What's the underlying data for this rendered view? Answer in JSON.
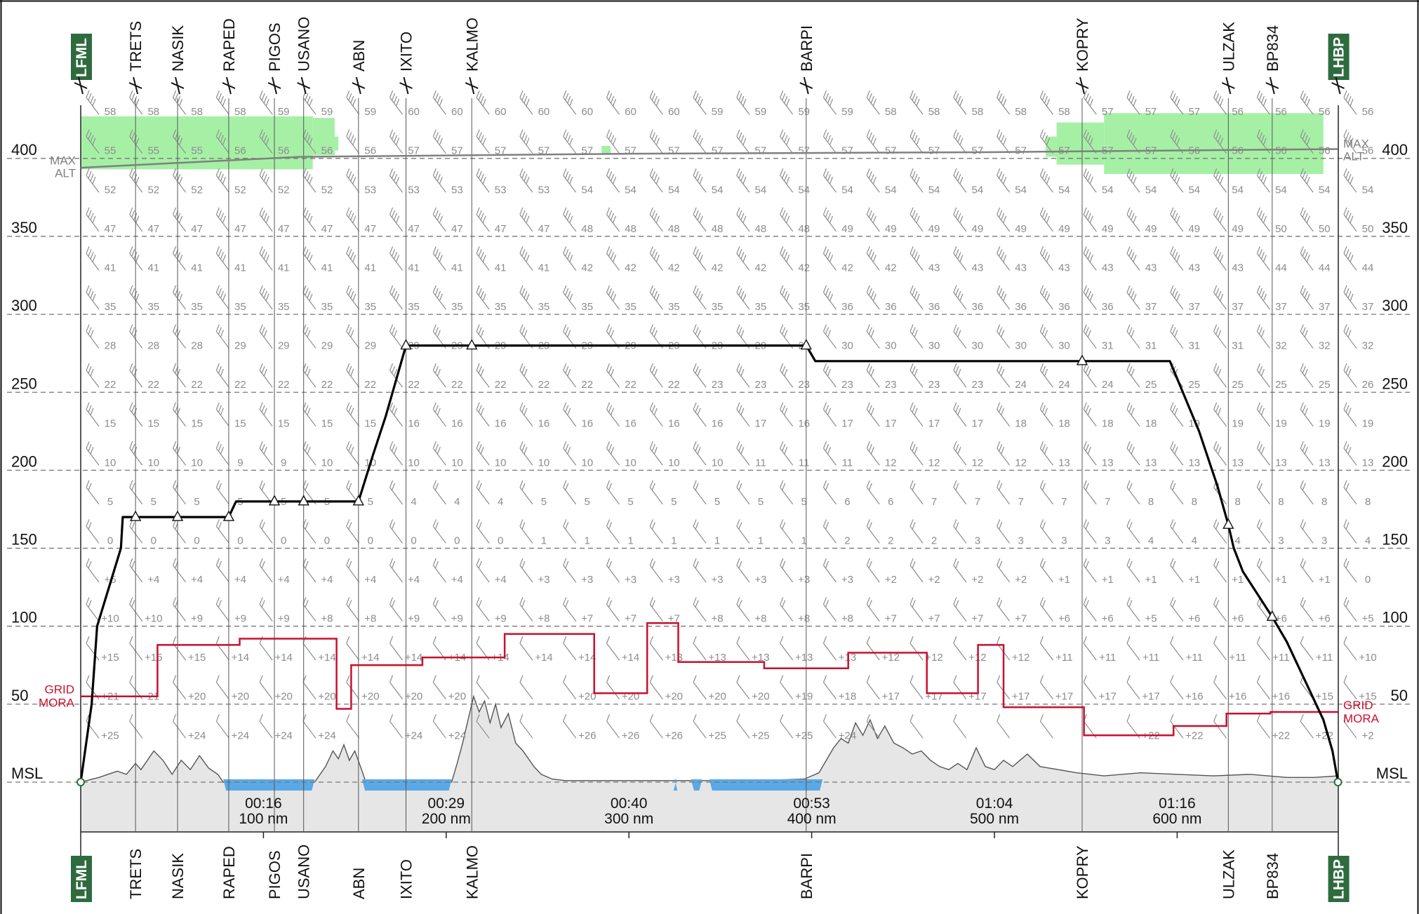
{
  "colors": {
    "profile": "#000000",
    "mora": "#c8102e",
    "maxalt": "#808080",
    "terrain_fill": "#e6e6e6",
    "water": "#5aa8e6",
    "cloud": "#a6f0a6",
    "airport_bg": "#2e6b3f",
    "grid": "#777777",
    "wind": "#8c8c8c"
  },
  "chart_data": {
    "type": "line",
    "y_axis": {
      "unit": "flight level",
      "range": [
        0,
        400
      ],
      "labels": [
        {
          "value": 0,
          "text": "MSL"
        },
        {
          "value": 50,
          "text": "50"
        },
        {
          "value": 100,
          "text": "100"
        },
        {
          "value": 150,
          "text": "150"
        },
        {
          "value": 200,
          "text": "200"
        },
        {
          "value": 250,
          "text": "250"
        },
        {
          "value": 300,
          "text": "300"
        },
        {
          "value": 350,
          "text": "350"
        },
        {
          "value": 400,
          "text": "400"
        }
      ]
    },
    "x_axis": {
      "unit": "nm",
      "range": [
        0,
        688
      ],
      "ticks": [
        {
          "nm": 100,
          "time": "00:16",
          "dist": "100 nm"
        },
        {
          "nm": 200,
          "time": "00:29",
          "dist": "200 nm"
        },
        {
          "nm": 300,
          "time": "00:40",
          "dist": "300 nm"
        },
        {
          "nm": 400,
          "time": "00:53",
          "dist": "400 nm"
        },
        {
          "nm": 500,
          "time": "01:04",
          "dist": "500 nm"
        },
        {
          "nm": 600,
          "time": "01:16",
          "dist": "600 nm"
        }
      ]
    },
    "waypoints": [
      {
        "name": "LFML",
        "nm": 0,
        "airport": true
      },
      {
        "name": "TRETS",
        "nm": 30
      },
      {
        "name": "NASIK",
        "nm": 53
      },
      {
        "name": "RAPED",
        "nm": 81
      },
      {
        "name": "PIGOS",
        "nm": 106
      },
      {
        "name": "USANO",
        "nm": 122
      },
      {
        "name": "ABN",
        "nm": 152
      },
      {
        "name": "IXITO",
        "nm": 178
      },
      {
        "name": "KALMO",
        "nm": 214
      },
      {
        "name": "BARPI",
        "nm": 397
      },
      {
        "name": "KOPRY",
        "nm": 548
      },
      {
        "name": "ULZAK",
        "nm": 628
      },
      {
        "name": "BP834",
        "nm": 652
      },
      {
        "name": "LHBP",
        "nm": 688,
        "airport": true
      }
    ],
    "profile": [
      [
        0,
        0
      ],
      [
        6,
        50
      ],
      [
        9,
        100
      ],
      [
        22,
        150
      ],
      [
        23,
        170
      ],
      [
        81,
        170
      ],
      [
        85,
        180
      ],
      [
        152,
        180
      ],
      [
        160,
        210
      ],
      [
        167,
        235
      ],
      [
        178,
        280
      ],
      [
        397,
        280
      ],
      [
        402,
        270
      ],
      [
        596,
        270
      ],
      [
        612,
        225
      ],
      [
        622,
        190
      ],
      [
        628,
        165
      ],
      [
        631,
        150
      ],
      [
        636,
        135
      ],
      [
        652,
        106
      ],
      [
        660,
        90
      ],
      [
        672,
        60
      ],
      [
        680,
        40
      ],
      [
        685,
        20
      ],
      [
        688,
        0
      ]
    ],
    "profile_markers": [
      [
        30,
        170
      ],
      [
        53,
        170
      ],
      [
        81,
        170
      ],
      [
        106,
        180
      ],
      [
        122,
        180
      ],
      [
        152,
        180
      ],
      [
        178,
        280
      ],
      [
        214,
        280
      ],
      [
        397,
        280
      ],
      [
        548,
        270
      ],
      [
        628,
        165
      ],
      [
        652,
        106
      ]
    ],
    "grid_mora": [
      [
        0,
        55
      ],
      [
        42,
        55
      ],
      [
        42,
        88
      ],
      [
        87,
        88
      ],
      [
        87,
        92
      ],
      [
        140,
        92
      ],
      [
        140,
        47
      ],
      [
        148,
        47
      ],
      [
        148,
        75
      ],
      [
        187,
        75
      ],
      [
        187,
        80
      ],
      [
        232,
        80
      ],
      [
        232,
        95
      ],
      [
        281,
        95
      ],
      [
        281,
        57
      ],
      [
        310,
        57
      ],
      [
        310,
        102
      ],
      [
        327,
        102
      ],
      [
        327,
        77
      ],
      [
        374,
        77
      ],
      [
        374,
        73
      ],
      [
        420,
        73
      ],
      [
        420,
        83
      ],
      [
        463,
        83
      ],
      [
        463,
        57
      ],
      [
        491,
        57
      ],
      [
        491,
        88
      ],
      [
        505,
        88
      ],
      [
        505,
        48
      ],
      [
        549,
        48
      ],
      [
        549,
        30
      ],
      [
        598,
        30
      ],
      [
        598,
        36
      ],
      [
        627,
        36
      ],
      [
        627,
        44
      ],
      [
        651,
        44
      ],
      [
        651,
        45
      ],
      [
        688,
        45
      ]
    ],
    "max_alt": [
      [
        0,
        394
      ],
      [
        120,
        401
      ],
      [
        300,
        403
      ],
      [
        500,
        404
      ],
      [
        688,
        406
      ]
    ],
    "terrain": [
      [
        0,
        0
      ],
      [
        10,
        3
      ],
      [
        20,
        7
      ],
      [
        25,
        5
      ],
      [
        30,
        12
      ],
      [
        33,
        8
      ],
      [
        40,
        20
      ],
      [
        45,
        14
      ],
      [
        50,
        5
      ],
      [
        55,
        14
      ],
      [
        60,
        8
      ],
      [
        65,
        17
      ],
      [
        70,
        9
      ],
      [
        75,
        5
      ],
      [
        78,
        0
      ],
      [
        128,
        0
      ],
      [
        134,
        10
      ],
      [
        138,
        20
      ],
      [
        141,
        15
      ],
      [
        144,
        24
      ],
      [
        147,
        14
      ],
      [
        150,
        20
      ],
      [
        154,
        7
      ],
      [
        156,
        0
      ],
      [
        203,
        0
      ],
      [
        206,
        12
      ],
      [
        209,
        25
      ],
      [
        212,
        40
      ],
      [
        215,
        55
      ],
      [
        218,
        45
      ],
      [
        221,
        52
      ],
      [
        224,
        38
      ],
      [
        227,
        50
      ],
      [
        230,
        35
      ],
      [
        234,
        44
      ],
      [
        238,
        25
      ],
      [
        242,
        20
      ],
      [
        248,
        10
      ],
      [
        252,
        5
      ],
      [
        258,
        2
      ],
      [
        265,
        1
      ],
      [
        300,
        1
      ],
      [
        320,
        1
      ],
      [
        340,
        1
      ],
      [
        370,
        1
      ],
      [
        396,
        2
      ],
      [
        404,
        6
      ],
      [
        408,
        14
      ],
      [
        412,
        22
      ],
      [
        416,
        28
      ],
      [
        420,
        25
      ],
      [
        424,
        38
      ],
      [
        428,
        30
      ],
      [
        432,
        40
      ],
      [
        436,
        28
      ],
      [
        440,
        36
      ],
      [
        445,
        25
      ],
      [
        450,
        22
      ],
      [
        455,
        18
      ],
      [
        460,
        20
      ],
      [
        465,
        14
      ],
      [
        470,
        10
      ],
      [
        475,
        8
      ],
      [
        480,
        12
      ],
      [
        485,
        8
      ],
      [
        490,
        22
      ],
      [
        495,
        10
      ],
      [
        500,
        8
      ],
      [
        505,
        14
      ],
      [
        510,
        10
      ],
      [
        518,
        18
      ],
      [
        525,
        10
      ],
      [
        535,
        8
      ],
      [
        545,
        6
      ],
      [
        560,
        4
      ],
      [
        580,
        6
      ],
      [
        600,
        5
      ],
      [
        620,
        4
      ],
      [
        640,
        5
      ],
      [
        660,
        3
      ],
      [
        675,
        3
      ],
      [
        688,
        4
      ]
    ],
    "water": [
      [
        78,
        128
      ],
      [
        154,
        203
      ],
      [
        325,
        326
      ],
      [
        334,
        340
      ],
      [
        344,
        406
      ]
    ],
    "clouds": [
      {
        "nm": [
          0,
          127
        ],
        "fl": [
          393,
          427
        ]
      },
      {
        "nm": [
          127,
          139
        ],
        "fl": [
          402,
          426
        ]
      },
      {
        "nm": [
          139,
          141
        ],
        "fl": [
          405,
          414
        ]
      },
      {
        "nm": [
          285,
          290
        ],
        "fl": [
          403,
          408
        ]
      },
      {
        "nm": [
          528,
          534
        ],
        "fl": [
          401,
          414
        ]
      },
      {
        "nm": [
          534,
          560
        ],
        "fl": [
          396,
          423
        ]
      },
      {
        "nm": [
          560,
          680
        ],
        "fl": [
          390,
          429
        ]
      }
    ],
    "temperatures": [
      {
        "fl": 430,
        "vals": [
          "58",
          "58",
          "58",
          "58",
          "59",
          "59",
          "59",
          "60",
          "60",
          "60",
          "60",
          "60",
          "60",
          "60",
          "59",
          "59",
          "59",
          "59",
          "58",
          "58",
          "58",
          "58",
          "58",
          "57",
          "57",
          "57",
          "56",
          "56",
          "56",
          "56"
        ]
      },
      {
        "fl": 405,
        "vals": [
          "55",
          "55",
          "55",
          "56",
          "56",
          "56",
          "56",
          "57",
          "57",
          "57",
          "57",
          "57",
          "57",
          "57",
          "57",
          "57",
          "57",
          "57",
          "57",
          "57",
          "57",
          "57",
          "57",
          "57",
          "57",
          "56",
          "56",
          "56",
          "56",
          "56"
        ]
      },
      {
        "fl": 380,
        "vals": [
          "52",
          "52",
          "52",
          "52",
          "52",
          "52",
          "53",
          "53",
          "53",
          "53",
          "53",
          "54",
          "54",
          "54",
          "54",
          "54",
          "54",
          "54",
          "54",
          "54",
          "54",
          "54",
          "54",
          "54",
          "54",
          "54",
          "54",
          "54",
          "54",
          "54"
        ]
      },
      {
        "fl": 355,
        "vals": [
          "47",
          "47",
          "47",
          "47",
          "47",
          "47",
          "47",
          "47",
          "47",
          "47",
          "47",
          "48",
          "48",
          "48",
          "48",
          "48",
          "48",
          "49",
          "49",
          "49",
          "49",
          "49",
          "49",
          "49",
          "49",
          "49",
          "49",
          "50",
          "50",
          "50"
        ]
      },
      {
        "fl": 330,
        "vals": [
          "41",
          "41",
          "41",
          "41",
          "41",
          "41",
          "41",
          "41",
          "41",
          "41",
          "41",
          "42",
          "42",
          "42",
          "42",
          "42",
          "42",
          "42",
          "42",
          "43",
          "43",
          "43",
          "43",
          "43",
          "43",
          "43",
          "43",
          "44",
          "44",
          "44"
        ]
      },
      {
        "fl": 305,
        "vals": [
          "35",
          "35",
          "35",
          "35",
          "35",
          "35",
          "35",
          "35",
          "35",
          "35",
          "35",
          "35",
          "35",
          "35",
          "35",
          "35",
          "35",
          "36",
          "36",
          "36",
          "36",
          "36",
          "36",
          "36",
          "37",
          "37",
          "37",
          "37",
          "37",
          "37"
        ]
      },
      {
        "fl": 280,
        "vals": [
          "28",
          "28",
          "28",
          "29",
          "29",
          "29",
          "29",
          "29",
          "29",
          "29",
          "29",
          "29",
          "29",
          "29",
          "29",
          "29",
          "29",
          "30",
          "30",
          "30",
          "30",
          "30",
          "30",
          "31",
          "31",
          "31",
          "31",
          "32",
          "32",
          "32"
        ]
      },
      {
        "fl": 255,
        "vals": [
          "22",
          "22",
          "22",
          "22",
          "22",
          "22",
          "22",
          "22",
          "22",
          "22",
          "22",
          "22",
          "22",
          "22",
          "23",
          "23",
          "23",
          "23",
          "23",
          "23",
          "23",
          "24",
          "24",
          "24",
          "25",
          "25",
          "25",
          "25",
          "25",
          "26"
        ]
      },
      {
        "fl": 230,
        "vals": [
          "15",
          "15",
          "15",
          "15",
          "15",
          "15",
          "15",
          "16",
          "16",
          "16",
          "16",
          "16",
          "16",
          "16",
          "16",
          "17",
          "16",
          "17",
          "17",
          "17",
          "17",
          "18",
          "18",
          "18",
          "18",
          "19",
          "19",
          "19",
          "19",
          "19"
        ]
      },
      {
        "fl": 205,
        "vals": [
          "10",
          "10",
          "10",
          "9",
          "9",
          "10",
          "10",
          "10",
          "10",
          "10",
          "10",
          "10",
          "10",
          "10",
          "10",
          "11",
          "11",
          "11",
          "12",
          "12",
          "12",
          "12",
          "13",
          "13",
          "13",
          "13",
          "13",
          "13",
          "13",
          "13"
        ]
      },
      {
        "fl": 180,
        "vals": [
          "5",
          "5",
          "5",
          "5",
          "5",
          "5",
          "5",
          "4",
          "4",
          "4",
          "5",
          "5",
          "5",
          "5",
          "5",
          "5",
          "5",
          "6",
          "6",
          "7",
          "7",
          "7",
          "7",
          "7",
          "8",
          "8",
          "8",
          "8",
          "8",
          "8"
        ]
      },
      {
        "fl": 155,
        "vals": [
          "0",
          "0",
          "0",
          "0",
          "0",
          "0",
          "0",
          "0",
          "0",
          "0",
          "1",
          "1",
          "1",
          "1",
          "1",
          "1",
          "1",
          "2",
          "2",
          "2",
          "3",
          "3",
          "3",
          "3",
          "4",
          "4",
          "4",
          "3",
          "3",
          "4"
        ]
      },
      {
        "fl": 130,
        "vals": [
          "+5",
          "+4",
          "+4",
          "+4",
          "+4",
          "+4",
          "+4",
          "+4",
          "+4",
          "+4",
          "+3",
          "+3",
          "+3",
          "+3",
          "+3",
          "+3",
          "+3",
          "+3",
          "+2",
          "+2",
          "+2",
          "+2",
          "+1",
          "+1",
          "+1",
          "+1",
          "+1",
          "+1",
          "+1",
          "0"
        ]
      },
      {
        "fl": 105,
        "vals": [
          "+10",
          "+10",
          "+9",
          "+9",
          "+9",
          "+8",
          "+8",
          "+9",
          "+9",
          "+9",
          "+8",
          "+7",
          "+7",
          "+7",
          "+8",
          "+8",
          "+8",
          "+8",
          "+7",
          "+7",
          "+7",
          "+7",
          "+6",
          "+6",
          "+5",
          "+6",
          "+6",
          "+6",
          "+6",
          "+5"
        ]
      },
      {
        "fl": 80,
        "vals": [
          "+15",
          "+15",
          "+15",
          "+14",
          "+14",
          "+14",
          "+14",
          "+14",
          "+14",
          "+14",
          "+14",
          "+14",
          "+14",
          "+13",
          "+13",
          "+13",
          "+13",
          "+13",
          "+12",
          "+12",
          "+12",
          "+12",
          "+11",
          "+11",
          "+11",
          "+11",
          "+11",
          "+11",
          "+11",
          "+10"
        ]
      },
      {
        "fl": 55,
        "vals": [
          "+21",
          "21",
          "+20",
          "+20",
          "+20",
          "+20",
          "+20",
          "+20",
          "+20",
          "",
          "",
          "+20",
          "+20",
          "+20",
          "+20",
          "+20",
          "+19",
          "+18",
          "+17",
          "+17",
          "+17",
          "+17",
          "+17",
          "+17",
          "+17",
          "+16",
          "+16",
          "+16",
          "+15",
          "+15"
        ]
      },
      {
        "fl": 30,
        "vals": [
          "+25",
          "",
          "+24",
          "+24",
          "+24",
          "+24",
          "",
          "+24",
          "+24",
          "",
          "",
          "+26",
          "+26",
          "+26",
          "+25",
          "+25",
          "+25",
          "+24",
          "",
          "",
          "",
          "",
          "",
          "",
          "+22",
          "+22",
          "",
          "+22",
          "+22",
          "+2"
        ]
      }
    ],
    "labels": {
      "max_alt": [
        "MAX",
        "ALT"
      ],
      "grid_mora": [
        "GRID",
        "MORA"
      ]
    }
  }
}
